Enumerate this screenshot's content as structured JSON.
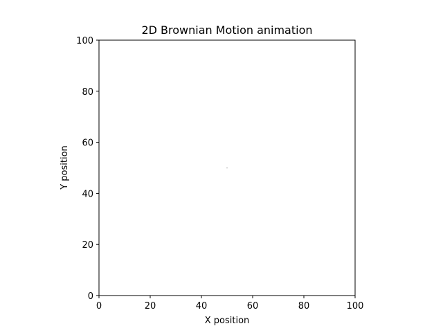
{
  "chart_data": {
    "type": "scatter",
    "title": "2D Brownian Motion animation",
    "xlabel": "X position",
    "ylabel": "Y position",
    "xlim": [
      0,
      100
    ],
    "ylim": [
      0,
      100
    ],
    "xticks": [
      0,
      20,
      40,
      60,
      80,
      100
    ],
    "yticks": [
      0,
      20,
      40,
      60,
      80,
      100
    ],
    "grid": false,
    "series": [
      {
        "points": [
          {
            "x": 50,
            "y": 50
          }
        ],
        "color": "#cccccc"
      }
    ]
  }
}
